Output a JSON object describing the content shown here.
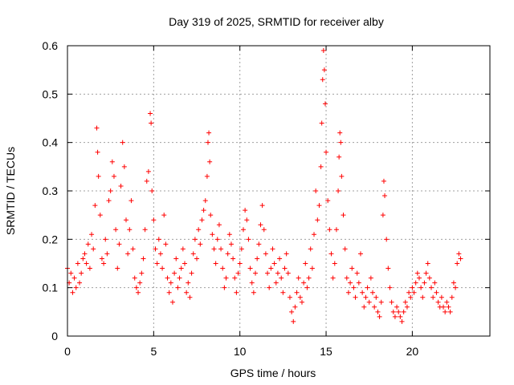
{
  "chart_data": {
    "type": "scatter",
    "title": "Day 319 of 2025, SRMTID for receiver alby",
    "xlabel": "GPS time / hours",
    "ylabel": "SRMTID / TECUs",
    "xlim": [
      0,
      24.5
    ],
    "ylim": [
      0,
      0.6
    ],
    "xticks": [
      0,
      5,
      10,
      15,
      20
    ],
    "xtick_labels": [
      "0",
      "5",
      "10",
      "15",
      "20"
    ],
    "yticks": [
      0,
      0.1,
      0.2,
      0.3,
      0.4,
      0.5,
      0.6
    ],
    "ytick_labels": [
      "0",
      "0.1",
      "0.2",
      "0.3",
      "0.4",
      "0.5",
      "0.6"
    ],
    "grid": true,
    "marker": "+",
    "marker_color": "#ff0000",
    "series": [
      {
        "name": "SRMTID",
        "points": [
          [
            0.0,
            0.14
          ],
          [
            0.1,
            0.11
          ],
          [
            0.2,
            0.13
          ],
          [
            0.3,
            0.09
          ],
          [
            0.4,
            0.12
          ],
          [
            0.5,
            0.1
          ],
          [
            0.6,
            0.15
          ],
          [
            0.7,
            0.11
          ],
          [
            0.8,
            0.13
          ],
          [
            0.9,
            0.16
          ],
          [
            1.0,
            0.17
          ],
          [
            1.1,
            0.15
          ],
          [
            1.2,
            0.19
          ],
          [
            1.3,
            0.14
          ],
          [
            1.4,
            0.21
          ],
          [
            1.5,
            0.18
          ],
          [
            1.6,
            0.27
          ],
          [
            1.7,
            0.43
          ],
          [
            1.75,
            0.38
          ],
          [
            1.8,
            0.33
          ],
          [
            1.9,
            0.25
          ],
          [
            2.0,
            0.16
          ],
          [
            2.1,
            0.15
          ],
          [
            2.2,
            0.2
          ],
          [
            2.3,
            0.17
          ],
          [
            2.4,
            0.28
          ],
          [
            2.5,
            0.3
          ],
          [
            2.6,
            0.36
          ],
          [
            2.7,
            0.33
          ],
          [
            2.8,
            0.22
          ],
          [
            2.9,
            0.14
          ],
          [
            3.0,
            0.19
          ],
          [
            3.1,
            0.31
          ],
          [
            3.2,
            0.4
          ],
          [
            3.3,
            0.35
          ],
          [
            3.4,
            0.24
          ],
          [
            3.5,
            0.17
          ],
          [
            3.6,
            0.22
          ],
          [
            3.7,
            0.28
          ],
          [
            3.8,
            0.18
          ],
          [
            3.9,
            0.12
          ],
          [
            4.0,
            0.1
          ],
          [
            4.1,
            0.09
          ],
          [
            4.2,
            0.11
          ],
          [
            4.3,
            0.13
          ],
          [
            4.4,
            0.16
          ],
          [
            4.5,
            0.22
          ],
          [
            4.6,
            0.32
          ],
          [
            4.7,
            0.34
          ],
          [
            4.8,
            0.46
          ],
          [
            4.85,
            0.44
          ],
          [
            4.9,
            0.3
          ],
          [
            5.0,
            0.24
          ],
          [
            5.1,
            0.18
          ],
          [
            5.2,
            0.15
          ],
          [
            5.3,
            0.2
          ],
          [
            5.4,
            0.17
          ],
          [
            5.5,
            0.14
          ],
          [
            5.6,
            0.25
          ],
          [
            5.7,
            0.19
          ],
          [
            5.8,
            0.12
          ],
          [
            5.9,
            0.09
          ],
          [
            6.0,
            0.11
          ],
          [
            6.1,
            0.07
          ],
          [
            6.2,
            0.13
          ],
          [
            6.3,
            0.16
          ],
          [
            6.4,
            0.1
          ],
          [
            6.5,
            0.12
          ],
          [
            6.6,
            0.14
          ],
          [
            6.7,
            0.18
          ],
          [
            6.8,
            0.15
          ],
          [
            6.9,
            0.09
          ],
          [
            7.0,
            0.11
          ],
          [
            7.1,
            0.08
          ],
          [
            7.2,
            0.13
          ],
          [
            7.3,
            0.17
          ],
          [
            7.4,
            0.2
          ],
          [
            7.5,
            0.16
          ],
          [
            7.6,
            0.22
          ],
          [
            7.7,
            0.19
          ],
          [
            7.8,
            0.24
          ],
          [
            7.9,
            0.26
          ],
          [
            8.0,
            0.28
          ],
          [
            8.1,
            0.33
          ],
          [
            8.15,
            0.4
          ],
          [
            8.2,
            0.42
          ],
          [
            8.25,
            0.36
          ],
          [
            8.3,
            0.25
          ],
          [
            8.4,
            0.21
          ],
          [
            8.5,
            0.18
          ],
          [
            8.6,
            0.15
          ],
          [
            8.7,
            0.2
          ],
          [
            8.8,
            0.23
          ],
          [
            8.9,
            0.18
          ],
          [
            9.0,
            0.14
          ],
          [
            9.1,
            0.1
          ],
          [
            9.2,
            0.12
          ],
          [
            9.3,
            0.17
          ],
          [
            9.4,
            0.21
          ],
          [
            9.5,
            0.19
          ],
          [
            9.6,
            0.16
          ],
          [
            9.7,
            0.12
          ],
          [
            9.8,
            0.09
          ],
          [
            9.9,
            0.13
          ],
          [
            10.0,
            0.15
          ],
          [
            10.1,
            0.18
          ],
          [
            10.2,
            0.22
          ],
          [
            10.3,
            0.26
          ],
          [
            10.4,
            0.24
          ],
          [
            10.5,
            0.2
          ],
          [
            10.6,
            0.14
          ],
          [
            10.7,
            0.11
          ],
          [
            10.8,
            0.09
          ],
          [
            10.9,
            0.13
          ],
          [
            11.0,
            0.16
          ],
          [
            11.1,
            0.19
          ],
          [
            11.2,
            0.23
          ],
          [
            11.3,
            0.27
          ],
          [
            11.4,
            0.22
          ],
          [
            11.5,
            0.17
          ],
          [
            11.6,
            0.13
          ],
          [
            11.7,
            0.1
          ],
          [
            11.8,
            0.14
          ],
          [
            11.9,
            0.18
          ],
          [
            12.0,
            0.15
          ],
          [
            12.1,
            0.11
          ],
          [
            12.2,
            0.13
          ],
          [
            12.3,
            0.16
          ],
          [
            12.4,
            0.12
          ],
          [
            12.5,
            0.09
          ],
          [
            12.6,
            0.14
          ],
          [
            12.7,
            0.17
          ],
          [
            12.8,
            0.13
          ],
          [
            12.9,
            0.08
          ],
          [
            13.0,
            0.05
          ],
          [
            13.1,
            0.03
          ],
          [
            13.2,
            0.06
          ],
          [
            13.3,
            0.09
          ],
          [
            13.4,
            0.12
          ],
          [
            13.5,
            0.08
          ],
          [
            13.6,
            0.07
          ],
          [
            13.7,
            0.11
          ],
          [
            13.8,
            0.15
          ],
          [
            13.9,
            0.1
          ],
          [
            14.0,
            0.12
          ],
          [
            14.1,
            0.18
          ],
          [
            14.2,
            0.14
          ],
          [
            14.3,
            0.21
          ],
          [
            14.4,
            0.3
          ],
          [
            14.5,
            0.24
          ],
          [
            14.6,
            0.27
          ],
          [
            14.7,
            0.35
          ],
          [
            14.75,
            0.44
          ],
          [
            14.8,
            0.53
          ],
          [
            14.85,
            0.59
          ],
          [
            14.9,
            0.55
          ],
          [
            14.95,
            0.48
          ],
          [
            15.0,
            0.38
          ],
          [
            15.1,
            0.28
          ],
          [
            15.2,
            0.22
          ],
          [
            15.3,
            0.17
          ],
          [
            15.4,
            0.12
          ],
          [
            15.5,
            0.15
          ],
          [
            15.6,
            0.22
          ],
          [
            15.7,
            0.3
          ],
          [
            15.75,
            0.37
          ],
          [
            15.8,
            0.42
          ],
          [
            15.85,
            0.4
          ],
          [
            15.9,
            0.33
          ],
          [
            16.0,
            0.25
          ],
          [
            16.1,
            0.18
          ],
          [
            16.2,
            0.12
          ],
          [
            16.3,
            0.09
          ],
          [
            16.4,
            0.11
          ],
          [
            16.5,
            0.14
          ],
          [
            16.6,
            0.1
          ],
          [
            16.7,
            0.08
          ],
          [
            16.8,
            0.13
          ],
          [
            16.9,
            0.11
          ],
          [
            17.0,
            0.17
          ],
          [
            17.1,
            0.09
          ],
          [
            17.2,
            0.06
          ],
          [
            17.3,
            0.08
          ],
          [
            17.4,
            0.1
          ],
          [
            17.5,
            0.07
          ],
          [
            17.6,
            0.12
          ],
          [
            17.7,
            0.09
          ],
          [
            17.8,
            0.06
          ],
          [
            17.9,
            0.08
          ],
          [
            18.0,
            0.05
          ],
          [
            18.1,
            0.04
          ],
          [
            18.2,
            0.07
          ],
          [
            18.3,
            0.25
          ],
          [
            18.35,
            0.32
          ],
          [
            18.4,
            0.29
          ],
          [
            18.5,
            0.2
          ],
          [
            18.6,
            0.14
          ],
          [
            18.7,
            0.1
          ],
          [
            18.8,
            0.07
          ],
          [
            18.9,
            0.05
          ],
          [
            19.0,
            0.04
          ],
          [
            19.1,
            0.06
          ],
          [
            19.2,
            0.05
          ],
          [
            19.3,
            0.04
          ],
          [
            19.4,
            0.03
          ],
          [
            19.5,
            0.05
          ],
          [
            19.6,
            0.07
          ],
          [
            19.7,
            0.06
          ],
          [
            19.8,
            0.09
          ],
          [
            19.9,
            0.08
          ],
          [
            20.0,
            0.1
          ],
          [
            20.1,
            0.09
          ],
          [
            20.2,
            0.11
          ],
          [
            20.3,
            0.13
          ],
          [
            20.4,
            0.12
          ],
          [
            20.5,
            0.1
          ],
          [
            20.6,
            0.08
          ],
          [
            20.7,
            0.11
          ],
          [
            20.8,
            0.13
          ],
          [
            20.9,
            0.15
          ],
          [
            21.0,
            0.12
          ],
          [
            21.1,
            0.1
          ],
          [
            21.2,
            0.08
          ],
          [
            21.3,
            0.11
          ],
          [
            21.4,
            0.09
          ],
          [
            21.5,
            0.07
          ],
          [
            21.6,
            0.06
          ],
          [
            21.7,
            0.08
          ],
          [
            21.8,
            0.06
          ],
          [
            21.9,
            0.05
          ],
          [
            22.0,
            0.07
          ],
          [
            22.1,
            0.06
          ],
          [
            22.2,
            0.05
          ],
          [
            22.3,
            0.08
          ],
          [
            22.4,
            0.11
          ],
          [
            22.5,
            0.1
          ],
          [
            22.6,
            0.15
          ],
          [
            22.7,
            0.17
          ],
          [
            22.8,
            0.16
          ]
        ]
      }
    ]
  }
}
